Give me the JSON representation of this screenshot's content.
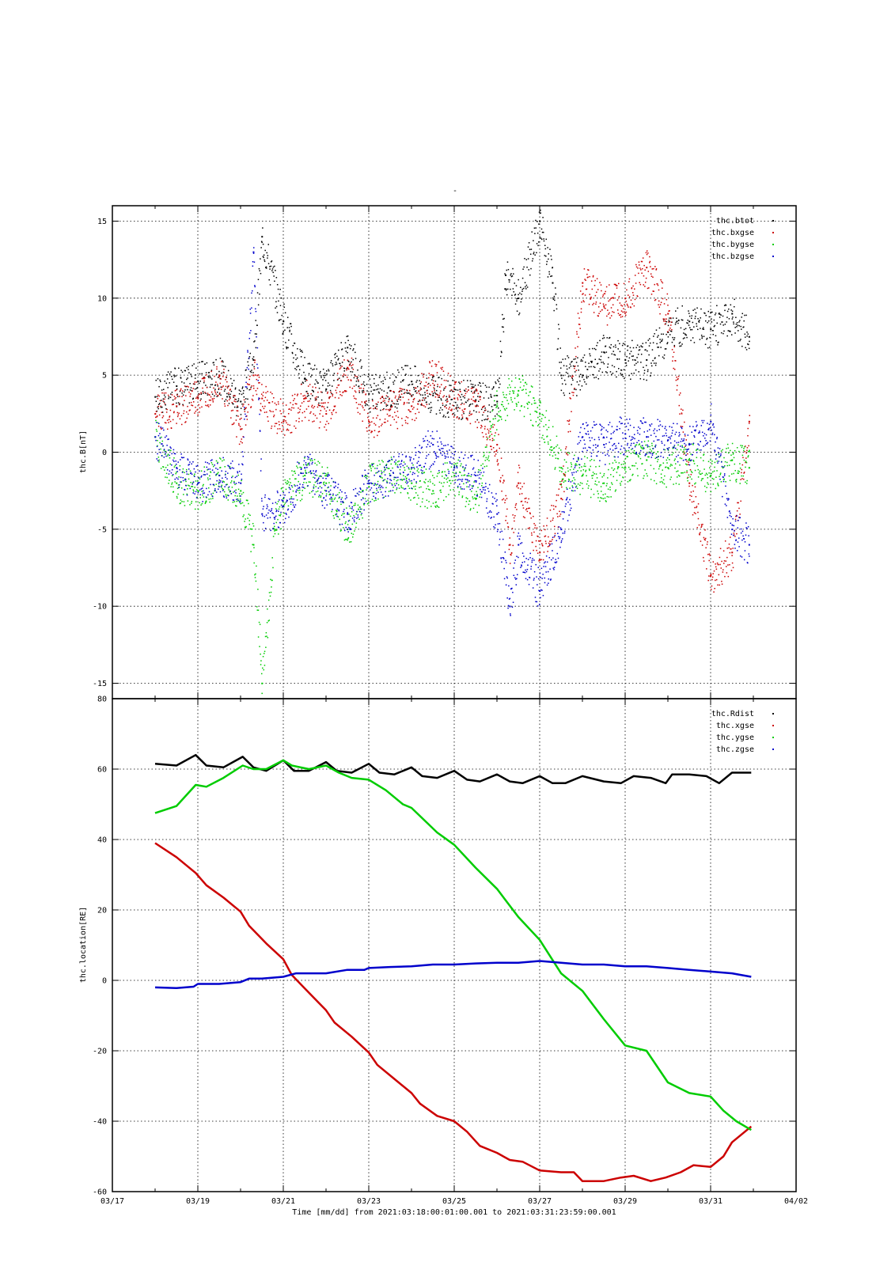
{
  "figure": {
    "top_title": "-",
    "xlabel": "Time [mm/dd]  from 2021:03:18:00:01:00.001  to  2021:03:31:23:59:00.001"
  },
  "chart_data": [
    {
      "type": "scatter",
      "ylabel": "thc.B[nT]",
      "xlim": [
        "03/17",
        "04/02"
      ],
      "ylim": [
        -16,
        16
      ],
      "yticks": [
        -15,
        -10,
        -5,
        0,
        5,
        10,
        15
      ],
      "grid": true,
      "legend": "top-right",
      "series": [
        {
          "name": "thc.btot",
          "color": "#000000",
          "x": [
            1.0,
            1.5,
            2.0,
            2.5,
            3.0,
            3.3,
            3.5,
            4.0,
            4.5,
            5.0,
            5.5,
            6.0,
            6.5,
            7.0,
            7.5,
            8.0,
            8.5,
            9.0,
            9.2,
            9.5,
            10.0,
            10.3,
            10.5,
            11.0,
            11.5,
            12.0,
            12.5,
            13.0,
            13.5,
            14.0,
            14.5,
            14.9
          ],
          "y": [
            3.6,
            4.3,
            4.6,
            5.0,
            3.3,
            6.0,
            14.0,
            8.5,
            4.8,
            4.1,
            6.8,
            3.8,
            4.0,
            4.6,
            3.7,
            3.5,
            3.4,
            3.3,
            11.5,
            10.0,
            15.0,
            11.0,
            5.0,
            5.0,
            6.5,
            6.0,
            6.0,
            7.8,
            8.5,
            8.0,
            9.0,
            7.5
          ]
        },
        {
          "name": "thc.bxgse",
          "color": "#cc0000",
          "x": [
            1.0,
            1.5,
            2.0,
            2.5,
            3.0,
            3.3,
            3.5,
            4.0,
            4.5,
            5.0,
            5.5,
            6.0,
            6.5,
            7.0,
            7.5,
            8.0,
            8.5,
            9.0,
            9.3,
            9.5,
            10.0,
            10.5,
            11.0,
            11.5,
            12.0,
            12.5,
            13.0,
            13.5,
            14.0,
            14.5,
            14.9
          ],
          "y": [
            2.5,
            3.0,
            3.5,
            5.0,
            1.5,
            5.0,
            3.5,
            2.0,
            3.5,
            2.5,
            5.5,
            2.0,
            2.8,
            3.0,
            5.0,
            3.5,
            3.0,
            0.5,
            -6.0,
            -2.0,
            -6.5,
            -3.0,
            11.0,
            9.5,
            10.0,
            12.0,
            9.0,
            -2.0,
            -8.0,
            -6.5,
            2.0
          ]
        },
        {
          "name": "thc.bygse",
          "color": "#00cc00",
          "x": [
            1.0,
            1.5,
            2.0,
            2.5,
            3.0,
            3.3,
            3.5,
            3.8,
            4.0,
            4.5,
            5.0,
            5.5,
            6.0,
            6.5,
            7.0,
            7.5,
            8.0,
            8.5,
            9.0,
            9.5,
            10.0,
            10.5,
            11.0,
            11.5,
            12.0,
            12.5,
            13.0,
            13.5,
            14.0,
            14.5,
            14.9
          ],
          "y": [
            1.0,
            -2.0,
            -2.5,
            -1.5,
            -2.5,
            -6.0,
            -15.0,
            -5.0,
            -3.0,
            -1.5,
            -2.0,
            -5.0,
            -2.0,
            -1.5,
            -2.0,
            -2.5,
            -1.5,
            -3.0,
            3.0,
            4.0,
            2.5,
            -1.0,
            -1.5,
            -2.0,
            -1.0,
            -0.5,
            -1.0,
            -0.5,
            -1.5,
            -0.5,
            -1.0
          ]
        },
        {
          "name": "thc.bzgse",
          "color": "#0000cc",
          "x": [
            1.0,
            1.5,
            2.0,
            2.5,
            3.0,
            3.3,
            3.5,
            4.0,
            4.5,
            5.0,
            5.5,
            6.0,
            6.5,
            7.0,
            7.5,
            8.0,
            8.5,
            9.0,
            9.3,
            9.5,
            10.0,
            10.5,
            11.0,
            11.5,
            12.0,
            12.5,
            13.0,
            13.5,
            14.0,
            14.5,
            14.9
          ],
          "y": [
            1.0,
            -1.0,
            -2.0,
            -1.5,
            -2.0,
            13.0,
            -4.0,
            -3.5,
            -1.0,
            -2.5,
            -4.0,
            -2.0,
            -1.5,
            -1.0,
            0.5,
            -1.0,
            -1.5,
            -4.0,
            -10.0,
            -6.0,
            -9.0,
            -5.0,
            1.0,
            0.5,
            1.2,
            1.0,
            0.8,
            0.5,
            2.0,
            -5.0,
            -6.0
          ]
        }
      ]
    },
    {
      "type": "line",
      "ylabel": "thc.location[RE]",
      "xlim": [
        "03/17",
        "04/02"
      ],
      "ylim": [
        -60,
        80
      ],
      "yticks": [
        -60,
        -40,
        -20,
        0,
        20,
        40,
        60,
        80
      ],
      "xticks": [
        "03/17",
        "03/19",
        "03/21",
        "03/23",
        "03/25",
        "03/27",
        "03/29",
        "03/31",
        "04/02"
      ],
      "grid": true,
      "legend": "top-right",
      "series": [
        {
          "name": "thc.Rdist",
          "color": "#000000",
          "x": [
            1.0,
            1.5,
            1.95,
            2.2,
            2.6,
            3.05,
            3.3,
            3.6,
            4.0,
            4.25,
            4.6,
            5.0,
            5.25,
            5.6,
            6.0,
            6.25,
            6.6,
            7.0,
            7.25,
            7.6,
            8.0,
            8.3,
            8.6,
            9.0,
            9.3,
            9.6,
            10.0,
            10.3,
            10.6,
            11.0,
            11.5,
            11.9,
            12.2,
            12.6,
            12.95,
            13.1,
            13.5,
            13.9,
            14.2,
            14.5,
            14.95
          ],
          "y": [
            61.5,
            61.0,
            64.0,
            61.0,
            60.5,
            63.5,
            60.5,
            59.5,
            62.5,
            59.5,
            59.5,
            62.0,
            59.5,
            59.0,
            61.5,
            59.0,
            58.5,
            60.5,
            58.0,
            57.5,
            59.5,
            57.0,
            56.5,
            58.5,
            56.5,
            56.0,
            58.0,
            56.0,
            56.0,
            58.0,
            56.5,
            56.0,
            58.0,
            57.5,
            56.0,
            58.5,
            58.5,
            58.0,
            56.0,
            59.0,
            59.0
          ]
        },
        {
          "name": "thc.xgse",
          "color": "#cc0000",
          "x": [
            1.0,
            1.5,
            1.95,
            2.2,
            2.6,
            3.0,
            3.2,
            3.6,
            4.0,
            4.2,
            4.6,
            5.0,
            5.2,
            5.6,
            6.0,
            6.2,
            6.6,
            7.0,
            7.2,
            7.6,
            8.0,
            8.3,
            8.6,
            9.0,
            9.3,
            9.6,
            10.0,
            10.5,
            10.8,
            11.0,
            11.5,
            11.9,
            12.2,
            12.6,
            12.95,
            13.3,
            13.6,
            14.0,
            14.3,
            14.5,
            14.95
          ],
          "y": [
            39.0,
            35.0,
            30.5,
            27.0,
            23.5,
            19.5,
            15.5,
            10.5,
            6.0,
            1.5,
            -3.5,
            -8.5,
            -12.0,
            -16.0,
            -20.5,
            -24.0,
            -28.0,
            -32.0,
            -35.0,
            -38.5,
            -40.0,
            -43.0,
            -47.0,
            -49.0,
            -51.0,
            -51.5,
            -54.0,
            -54.5,
            -54.5,
            -57.0,
            -57.0,
            -56.0,
            -55.5,
            -57.0,
            -56.0,
            -54.5,
            -52.5,
            -53.0,
            -50.0,
            -46.0,
            -41.5
          ]
        },
        {
          "name": "thc.ygse",
          "color": "#00cc00",
          "x": [
            1.0,
            1.5,
            1.95,
            2.2,
            2.6,
            3.05,
            3.3,
            3.6,
            4.0,
            4.2,
            4.6,
            5.0,
            5.3,
            5.6,
            6.0,
            6.4,
            6.8,
            7.0,
            7.6,
            8.0,
            8.5,
            9.0,
            9.5,
            10.0,
            10.5,
            11.0,
            11.5,
            12.0,
            12.5,
            13.0,
            13.5,
            14.0,
            14.3,
            14.6,
            14.95
          ],
          "y": [
            47.5,
            49.5,
            55.5,
            55.0,
            57.5,
            61.0,
            60.0,
            60.0,
            62.5,
            61.0,
            60.0,
            61.0,
            59.0,
            57.5,
            57.0,
            54.0,
            50.0,
            49.0,
            42.0,
            38.5,
            32.0,
            26.0,
            18.0,
            11.5,
            2.0,
            -3.0,
            -11.0,
            -18.5,
            -20.0,
            -29.0,
            -32.0,
            -33.0,
            -37.0,
            -40.0,
            -42.5
          ]
        },
        {
          "name": "thc.zgse",
          "color": "#0000cc",
          "x": [
            1.0,
            1.5,
            1.9,
            2.0,
            2.5,
            3.0,
            3.2,
            3.5,
            4.0,
            4.3,
            4.5,
            5.0,
            5.5,
            5.9,
            6.0,
            6.5,
            7.0,
            7.5,
            8.0,
            8.5,
            9.0,
            9.5,
            10.0,
            10.5,
            11.0,
            11.5,
            12.0,
            12.5,
            13.0,
            13.5,
            14.0,
            14.5,
            14.95
          ],
          "y": [
            -2.0,
            -2.2,
            -1.8,
            -1.0,
            -1.0,
            -0.5,
            0.5,
            0.5,
            1.0,
            2.0,
            2.0,
            2.0,
            3.0,
            3.0,
            3.5,
            3.8,
            4.0,
            4.5,
            4.5,
            4.8,
            5.0,
            5.0,
            5.5,
            5.0,
            4.5,
            4.5,
            4.0,
            4.0,
            3.5,
            3.0,
            2.5,
            2.0,
            1.0
          ]
        }
      ]
    }
  ]
}
